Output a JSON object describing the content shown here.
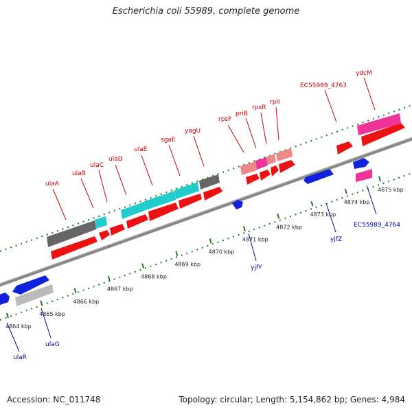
{
  "title": "Escherichia coli 55989, complete genome",
  "footer": {
    "accession": "Accession: NC_011748",
    "summary": "Topology: circular; Length: 5,154,862 bp; Genes: 4,984"
  },
  "colors": {
    "forward_cds": "#ee1111",
    "reverse_cds": "#1122dd",
    "gray_feature": "#666666",
    "cyan_feature": "#22cccc",
    "pink_feature": "#ee3399",
    "light_red_feature": "#ee8888",
    "backbone": "#888888",
    "tick": "#227722",
    "forward_label": "#cc0000",
    "reverse_label": "#0000aa"
  },
  "scale_labels": [
    {
      "label": "4864 kbp",
      "pos": 4864.0
    },
    {
      "label": "4865 kbp",
      "pos": 4865.0
    },
    {
      "label": "4866 kbp",
      "pos": 4866.0
    },
    {
      "label": "4867 kbp",
      "pos": 4867.0
    },
    {
      "label": "4868 kbp",
      "pos": 4868.0
    },
    {
      "label": "4869 kbp",
      "pos": 4869.0
    },
    {
      "label": "4870 kbp",
      "pos": 4870.0
    },
    {
      "label": "4871 kbp",
      "pos": 4871.0
    },
    {
      "label": "4872 kbp",
      "pos": 4872.0
    },
    {
      "label": "4873 kbp",
      "pos": 4873.0
    },
    {
      "label": "4874 kbp",
      "pos": 4874.0
    },
    {
      "label": "4875 kbp",
      "pos": 4875.0
    }
  ],
  "forward_labels": [
    "ulaA",
    "ulaB",
    "ulaC",
    "ulaD",
    "ulaE",
    "sgaE",
    "yagU",
    "rpsF",
    "priB",
    "rpsR",
    "rplI",
    "EC55989_4763",
    "ydcM"
  ],
  "reverse_labels": [
    "ulaR",
    "ulaG",
    "yjfY",
    "yjfZ",
    "EC55989_4764"
  ]
}
